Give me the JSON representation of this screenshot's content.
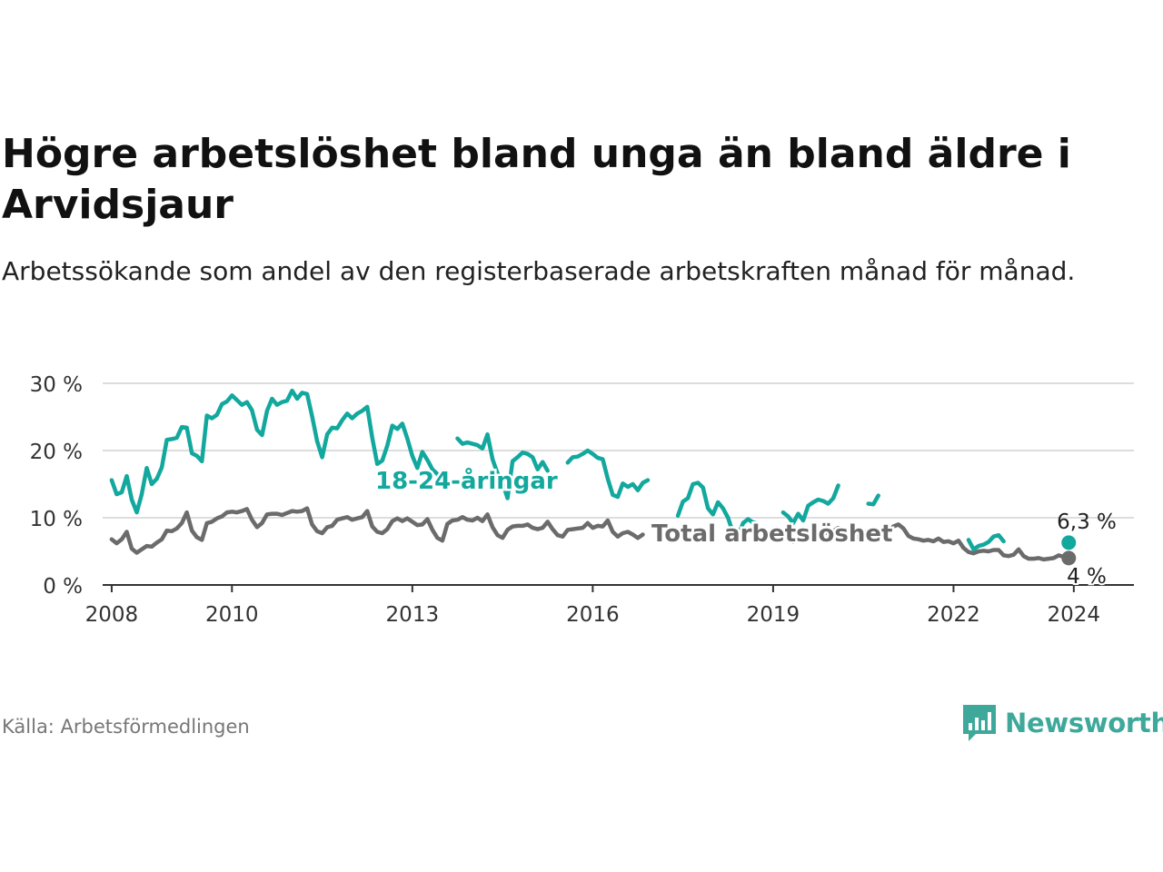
{
  "header": {
    "title": "Högre arbetslöshet bland unga än bland äldre i Arvidsjaur",
    "subtitle": "Arbetssökande som andel av den registerbaserade arbetskraften månad för månad."
  },
  "footer": {
    "source": "Källa: Arbetsförmedlingen",
    "brand": "Newsworthy"
  },
  "colors": {
    "youth": "#13a89e",
    "total": "#6b6b6b",
    "grid": "#dddddd",
    "axis": "#333333",
    "brand": "#3ea99a"
  },
  "chart_data": {
    "type": "line",
    "title": "Högre arbetslöshet bland unga än bland äldre i Arvidsjaur",
    "xlabel": "",
    "ylabel": "",
    "xlim": [
      2007.85,
      2025.0
    ],
    "ylim": [
      0,
      30
    ],
    "x_ticks": [
      {
        "value": 2008,
        "label": "2008"
      },
      {
        "value": 2010,
        "label": "2010"
      },
      {
        "value": 2013,
        "label": "2013"
      },
      {
        "value": 2016,
        "label": "2016"
      },
      {
        "value": 2019,
        "label": "2019"
      },
      {
        "value": 2022,
        "label": "2022"
      },
      {
        "value": 2024,
        "label": "2024"
      }
    ],
    "y_ticks": [
      {
        "value": 0,
        "label": "0 %"
      },
      {
        "value": 10,
        "label": "10 %"
      },
      {
        "value": 20,
        "label": "20 %"
      },
      {
        "value": 30,
        "label": "30 %"
      }
    ],
    "x_start": 2008.0,
    "x_step": 0.08333,
    "series": [
      {
        "name": "18-24-åringar",
        "label": "18-24-åringar",
        "end_label": "6,3 %",
        "values": [
          15.6,
          13.5,
          13.8,
          16.2,
          12.7,
          10.8,
          13.5,
          17.4,
          15.0,
          15.8,
          17.5,
          21.6,
          21.7,
          21.9,
          23.5,
          23.4,
          19.6,
          19.2,
          18.4,
          25.2,
          24.8,
          25.3,
          26.9,
          27.3,
          28.2,
          27.5,
          26.8,
          27.2,
          26.0,
          23.1,
          22.3,
          25.9,
          27.7,
          26.8,
          27.2,
          27.4,
          28.9,
          27.7,
          28.6,
          28.4,
          25.1,
          21.4,
          19.0,
          22.4,
          23.4,
          23.3,
          24.5,
          25.5,
          24.8,
          25.5,
          25.9,
          26.5,
          21.9,
          18.0,
          18.5,
          20.7,
          23.7,
          23.2,
          24.0,
          21.8,
          19.2,
          17.4,
          19.8,
          18.6,
          17.2,
          16.5,
          17.5,
          21.2,
          22.1,
          21.8,
          21.0,
          21.2,
          21.0,
          20.8,
          20.3,
          22.4,
          18.7,
          16.6,
          15.2,
          12.9,
          18.4,
          19.0,
          19.7,
          19.5,
          19.0,
          17.2,
          18.3,
          17.0,
          14.7,
          12.6,
          17.8,
          18.2,
          19.0,
          19.1,
          19.5,
          20.0,
          19.5,
          18.9,
          18.7,
          15.8,
          13.4,
          13.1,
          15.1,
          14.6,
          15.0,
          14.1,
          15.2,
          15.6,
          15.2,
          15.8,
          17.2,
          14.0,
          11.0,
          10.3,
          12.4,
          12.9,
          15.0,
          15.2,
          14.5,
          11.4,
          10.5,
          12.3,
          11.4,
          10.0,
          7.7,
          7.3,
          9.2,
          9.8,
          9.3,
          9.1,
          8.8,
          8.9,
          10.0,
          11.9,
          10.8,
          10.2,
          9.2,
          10.6,
          9.6,
          11.8,
          12.3,
          12.7,
          12.5,
          12.1,
          12.9,
          14.8,
          14.6,
          10.7,
          9.9,
          13.7,
          14.3,
          12.1,
          12.0,
          13.3,
          12.4,
          13.0,
          14.7,
          15.0,
          14.7,
          12.6,
          11.6,
          11.4,
          9.8,
          9.9,
          10.7,
          12.0,
          10.6,
          10.8,
          10.7,
          11.7,
          8.8,
          6.7,
          5.3,
          5.8,
          6.0,
          6.4,
          7.2,
          7.4,
          6.5,
          6.2,
          7.5,
          8.7,
          5.4,
          5.2,
          6.3,
          6.0,
          5.9,
          5.8,
          5.6,
          6.7,
          7.3,
          6.3
        ],
        "gaps": [
          [
            66,
            68
          ],
          [
            88,
            90
          ],
          [
            108,
            112
          ],
          [
            130,
            133
          ],
          [
            146,
            150
          ],
          [
            154,
            163
          ],
          [
            165,
            170
          ],
          [
            179,
            183
          ],
          [
            185,
            196
          ]
        ]
      },
      {
        "name": "Total arbetslöshet",
        "label": "Total arbetslöshet",
        "end_label": "4 %",
        "values": [
          6.8,
          6.2,
          6.8,
          7.9,
          5.4,
          4.8,
          5.3,
          5.8,
          5.7,
          6.3,
          6.8,
          8.1,
          8.0,
          8.4,
          9.2,
          10.8,
          8.1,
          7.1,
          6.7,
          9.2,
          9.4,
          9.9,
          10.2,
          10.8,
          10.9,
          10.8,
          11.0,
          11.3,
          9.7,
          8.6,
          9.2,
          10.5,
          10.6,
          10.6,
          10.4,
          10.7,
          11.0,
          10.9,
          11.0,
          11.4,
          9.0,
          8.0,
          7.7,
          8.6,
          8.8,
          9.7,
          9.9,
          10.1,
          9.7,
          9.9,
          10.1,
          11.0,
          8.7,
          7.9,
          7.7,
          8.3,
          9.5,
          9.9,
          9.5,
          9.9,
          9.4,
          8.9,
          9.0,
          9.8,
          8.2,
          7.0,
          6.6,
          9.1,
          9.6,
          9.7,
          10.1,
          9.7,
          9.6,
          10.0,
          9.5,
          10.5,
          8.6,
          7.4,
          7.0,
          8.2,
          8.7,
          8.8,
          8.8,
          9.0,
          8.5,
          8.3,
          8.5,
          9.4,
          8.3,
          7.4,
          7.2,
          8.2,
          8.3,
          8.4,
          8.5,
          9.2,
          8.5,
          8.8,
          8.7,
          9.6,
          7.9,
          7.2,
          7.7,
          7.9,
          7.5,
          7.0,
          7.5,
          7.6,
          7.5,
          7.7,
          8.6,
          7.0,
          5.8,
          5.7,
          7.0,
          7.1,
          7.2,
          7.0,
          6.9,
          6.5,
          6.3,
          6.7,
          6.2,
          6.0,
          5.7,
          5.4,
          6.3,
          6.8,
          6.5,
          6.4,
          6.1,
          6.3,
          6.7,
          7.5,
          7.2,
          7.0,
          6.4,
          7.3,
          6.5,
          7.4,
          7.8,
          7.8,
          7.9,
          7.7,
          8.0,
          8.5,
          8.2,
          6.9,
          6.6,
          7.4,
          8.0,
          7.7,
          7.6,
          7.8,
          7.5,
          7.8,
          8.7,
          9.0,
          8.4,
          7.3,
          6.9,
          6.8,
          6.6,
          6.7,
          6.5,
          6.9,
          6.4,
          6.5,
          6.2,
          6.6,
          5.5,
          4.9,
          4.7,
          5.0,
          5.1,
          5.0,
          5.2,
          5.2,
          4.4,
          4.3,
          4.5,
          5.3,
          4.3,
          3.9,
          3.9,
          4.0,
          3.8,
          3.9,
          4.0,
          4.4,
          4.2,
          4.0
        ],
        "gaps": [
          [
            107,
            132
          ]
        ]
      }
    ]
  }
}
